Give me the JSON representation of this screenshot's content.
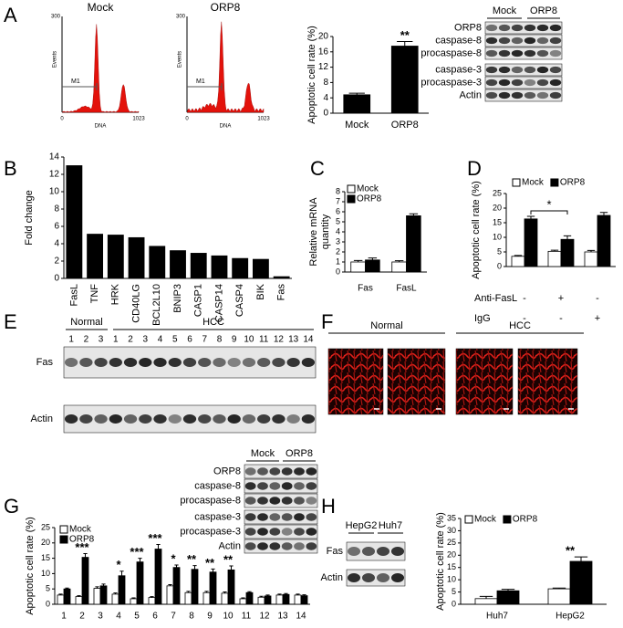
{
  "chart_data": [
    {
      "type": "bar",
      "ylabel": "Apoptotic cell rate (%)",
      "categories": [
        "Mock",
        "ORP8"
      ],
      "values": [
        4.8,
        17.5
      ],
      "errors": [
        0.4,
        1.2
      ],
      "color": "#000000",
      "ylim": [
        0,
        20
      ],
      "yticks": [
        0,
        4,
        8,
        12,
        16,
        20
      ],
      "annotations": [
        {
          "category": "ORP8",
          "text": "**"
        }
      ]
    },
    {
      "type": "bar",
      "ylabel": "Fold change",
      "categories": [
        "FasL",
        "TNF",
        "HRK",
        "CD40LG",
        "BCL2L10",
        "BNIP3",
        "CASP1",
        "CASP14",
        "CASP4",
        "BIK",
        "Fas"
      ],
      "values": [
        13,
        5.1,
        5.0,
        4.7,
        3.7,
        3.2,
        2.9,
        2.6,
        2.3,
        2.2,
        0.2
      ],
      "color": "#000000",
      "ylim": [
        0,
        14
      ],
      "yticks": [
        0,
        2,
        4,
        6,
        8,
        10,
        12,
        14
      ]
    },
    {
      "type": "bar",
      "ylabel": [
        "Relative mRNA",
        "quantity"
      ],
      "categories": [
        "Fas",
        "FasL"
      ],
      "series": [
        {
          "name": "Mock",
          "color": "#ffffff",
          "values": [
            1.0,
            1.0
          ],
          "errors": [
            0.15,
            0.12
          ]
        },
        {
          "name": "ORP8",
          "color": "#000000",
          "values": [
            1.2,
            5.6
          ],
          "errors": [
            0.2,
            0.2
          ]
        }
      ],
      "ylim": [
        0,
        8
      ],
      "yticks": [
        0,
        1,
        2,
        3,
        4,
        5,
        6,
        7,
        8
      ],
      "legend": "upper left"
    },
    {
      "type": "bar",
      "ylabel": "Apoptotic cell rate (%)",
      "series": [
        {
          "name": "Mock",
          "color": "#ffffff",
          "values": [
            3.5,
            5.2,
            5.0
          ],
          "errors": [
            0.3,
            0.4,
            0.5
          ]
        },
        {
          "name": "ORP8",
          "color": "#000000",
          "values": [
            16.3,
            9.3,
            17.5
          ],
          "errors": [
            0.9,
            1.2,
            1.0
          ]
        }
      ],
      "ylim": [
        0,
        25
      ],
      "yticks": [
        0,
        5,
        10,
        15,
        20,
        25
      ],
      "legend": "top",
      "annotations": [
        {
          "text": "*"
        }
      ],
      "conditions": [
        {
          "label": "Anti-FasL",
          "values": [
            "-",
            "+",
            "-"
          ]
        },
        {
          "label": "IgG",
          "values": [
            "-",
            "-",
            "+"
          ]
        }
      ]
    },
    {
      "type": "bar",
      "ylabel": "Apoptotic cell rate (%)",
      "categories": [
        1,
        2,
        3,
        4,
        5,
        6,
        7,
        8,
        9,
        10,
        11,
        12,
        13,
        14
      ],
      "series": [
        {
          "name": "Mock",
          "color": "#ffffff",
          "values": [
            3,
            2.5,
            5.2,
            3.3,
            1.8,
            2.2,
            6,
            3.8,
            3.8,
            3.6,
            1.8,
            2.3,
            3,
            3
          ],
          "errors": [
            0.3,
            0.3,
            0.5,
            0.4,
            0.3,
            0.3,
            0.4,
            0.4,
            0.4,
            0.4,
            0.3,
            0.3,
            0.3,
            0.3
          ]
        },
        {
          "name": "ORP8",
          "color": "#000000",
          "values": [
            5,
            15.3,
            6,
            9.3,
            13.8,
            18,
            12,
            11.4,
            10.5,
            11.2,
            3.8,
            2.7,
            3.2,
            2.8
          ],
          "errors": [
            0.3,
            1.2,
            0.6,
            1.5,
            1.2,
            1.5,
            0.8,
            1.2,
            1.0,
            1.3,
            0.3,
            0.3,
            0.3,
            0.3
          ]
        }
      ],
      "ylim": [
        0,
        25
      ],
      "yticks": [
        0,
        5,
        10,
        15,
        20,
        25
      ],
      "legend": "upper left",
      "annotations": [
        {
          "category": 2,
          "text": "***"
        },
        {
          "category": 4,
          "text": "*"
        },
        {
          "category": 5,
          "text": "***"
        },
        {
          "category": 6,
          "text": "***"
        },
        {
          "category": 7,
          "text": "*"
        },
        {
          "category": 8,
          "text": "**"
        },
        {
          "category": 9,
          "text": "**"
        },
        {
          "category": 10,
          "text": "**"
        }
      ]
    },
    {
      "type": "bar",
      "ylabel": "Apoptotic cell rate (%)",
      "categories": [
        "Huh7",
        "HepG2"
      ],
      "series": [
        {
          "name": "Mock",
          "color": "#ffffff",
          "values": [
            2.3,
            6.3
          ],
          "errors": [
            0.9,
            0.3
          ]
        },
        {
          "name": "ORP8",
          "color": "#000000",
          "values": [
            5.5,
            17.5
          ],
          "errors": [
            0.6,
            1.8
          ]
        }
      ],
      "ylim": [
        0,
        35
      ],
      "yticks": [
        0,
        5,
        10,
        15,
        20,
        25,
        30,
        35
      ],
      "legend": "top",
      "annotations": [
        {
          "category": "HepG2",
          "text": "**"
        }
      ]
    }
  ],
  "panels": {
    "letters": [
      "A",
      "B",
      "C",
      "D",
      "E",
      "F",
      "G",
      "H"
    ],
    "flow": [
      {
        "title": "Mock",
        "ylabel": "Events",
        "xlabel": "DNA",
        "xticks": [
          0,
          1023
        ],
        "ytop": 300,
        "gate": "M1"
      },
      {
        "title": "ORP8",
        "ylabel": "Events",
        "xlabel": "DNA",
        "xticks": [
          0,
          1023
        ],
        "ytop": 300,
        "gate": "M1"
      }
    ],
    "blot_a": {
      "groups": [
        "Mock",
        "ORP8"
      ],
      "rows": [
        "ORP8",
        "caspase-8",
        "procaspase-8",
        "caspase-3",
        "procaspase-3",
        "Actin"
      ]
    },
    "blot_e": {
      "groups": [
        "Normal",
        "HCC"
      ],
      "lanes": [
        1,
        2,
        3,
        1,
        2,
        3,
        4,
        5,
        6,
        7,
        8,
        9,
        10,
        11,
        12,
        13,
        14
      ],
      "rows": [
        "Fas",
        "Actin"
      ]
    },
    "images_f": {
      "groups": [
        "Normal",
        "HCC"
      ]
    },
    "blot_g": {
      "groups": [
        "Mock",
        "ORP8"
      ],
      "rows": [
        "ORP8",
        "caspase-8",
        "procaspase-8",
        "caspase-3",
        "procaspase-3",
        "Actin"
      ]
    },
    "blot_h": {
      "groups": [
        "HepG2",
        "Huh7"
      ],
      "rows": [
        "Fas",
        "Actin"
      ]
    }
  }
}
